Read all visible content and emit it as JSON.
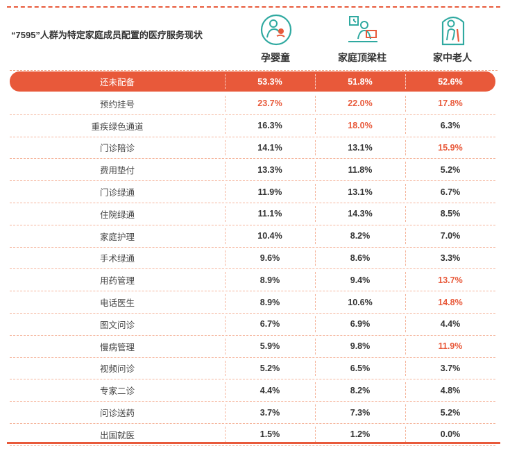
{
  "title": "“7595”人群为特定家庭成员配置的医疗服务现状",
  "columns": [
    {
      "label": "孕婴童",
      "icon": "mother-baby-icon"
    },
    {
      "label": "家庭顶梁柱",
      "icon": "office-worker-icon"
    },
    {
      "label": "家中老人",
      "icon": "elderly-person-icon"
    }
  ],
  "colors": {
    "accent": "#e8593a",
    "text": "#333333",
    "divider": "#f5b49b"
  },
  "rows": [
    {
      "label": "还未配备",
      "values": [
        "53.3%",
        "51.8%",
        "52.6%"
      ]
    },
    {
      "label": "预约挂号",
      "values": [
        "23.7%",
        "22.0%",
        "17.8%"
      ]
    },
    {
      "label": "重疾绿色通道",
      "values": [
        "16.3%",
        "18.0%",
        "6.3%"
      ]
    },
    {
      "label": "门诊陪诊",
      "values": [
        "14.1%",
        "13.1%",
        "15.9%"
      ]
    },
    {
      "label": "费用垫付",
      "values": [
        "13.3%",
        "11.8%",
        "5.2%"
      ]
    },
    {
      "label": "门诊绿通",
      "values": [
        "11.9%",
        "13.1%",
        "6.7%"
      ]
    },
    {
      "label": "住院绿通",
      "values": [
        "11.1%",
        "14.3%",
        "8.5%"
      ]
    },
    {
      "label": "家庭护理",
      "values": [
        "10.4%",
        "8.2%",
        "7.0%"
      ]
    },
    {
      "label": "手术绿通",
      "values": [
        "9.6%",
        "8.6%",
        "3.3%"
      ]
    },
    {
      "label": "用药管理",
      "values": [
        "8.9%",
        "9.4%",
        "13.7%"
      ]
    },
    {
      "label": "电话医生",
      "values": [
        "8.9%",
        "10.6%",
        "14.8%"
      ]
    },
    {
      "label": "图文问诊",
      "values": [
        "6.7%",
        "6.9%",
        "4.4%"
      ]
    },
    {
      "label": "慢病管理",
      "values": [
        "5.9%",
        "9.8%",
        "11.9%"
      ]
    },
    {
      "label": "视频问诊",
      "values": [
        "5.2%",
        "6.5%",
        "3.7%"
      ]
    },
    {
      "label": "专家二诊",
      "values": [
        "4.4%",
        "8.2%",
        "4.8%"
      ]
    },
    {
      "label": "问诊送药",
      "values": [
        "3.7%",
        "7.3%",
        "5.2%"
      ]
    },
    {
      "label": "出国就医",
      "values": [
        "1.5%",
        "1.2%",
        "0.0%"
      ]
    }
  ],
  "highlighted_cells": [
    [
      1,
      0
    ],
    [
      1,
      1
    ],
    [
      1,
      2
    ],
    [
      2,
      1
    ],
    [
      3,
      2
    ],
    [
      9,
      2
    ],
    [
      10,
      2
    ],
    [
      12,
      2
    ]
  ],
  "chart_data": {
    "type": "table",
    "title": "“7595”人群为特定家庭成员配置的医疗服务现状",
    "categories": [
      "还未配备",
      "预约挂号",
      "重疾绿色通道",
      "门诊陪诊",
      "费用垫付",
      "门诊绿通",
      "住院绿通",
      "家庭护理",
      "手术绿通",
      "用药管理",
      "电话医生",
      "图文问诊",
      "慢病管理",
      "视频问诊",
      "专家二诊",
      "问诊送药",
      "出国就医"
    ],
    "series": [
      {
        "name": "孕婴童",
        "values": [
          53.3,
          23.7,
          16.3,
          14.1,
          13.3,
          11.9,
          11.1,
          10.4,
          9.6,
          8.9,
          8.9,
          6.7,
          5.9,
          5.2,
          4.4,
          3.7,
          1.5
        ]
      },
      {
        "name": "家庭顶梁柱",
        "values": [
          51.8,
          22.0,
          18.0,
          13.1,
          11.8,
          13.1,
          14.3,
          8.2,
          8.6,
          9.4,
          10.6,
          6.9,
          9.8,
          6.5,
          8.2,
          7.3,
          1.2
        ]
      },
      {
        "name": "家中老人",
        "values": [
          52.6,
          17.8,
          6.3,
          15.9,
          5.2,
          6.7,
          8.5,
          7.0,
          3.3,
          13.7,
          14.8,
          4.4,
          11.9,
          3.7,
          4.8,
          5.2,
          0.0
        ]
      }
    ]
  }
}
